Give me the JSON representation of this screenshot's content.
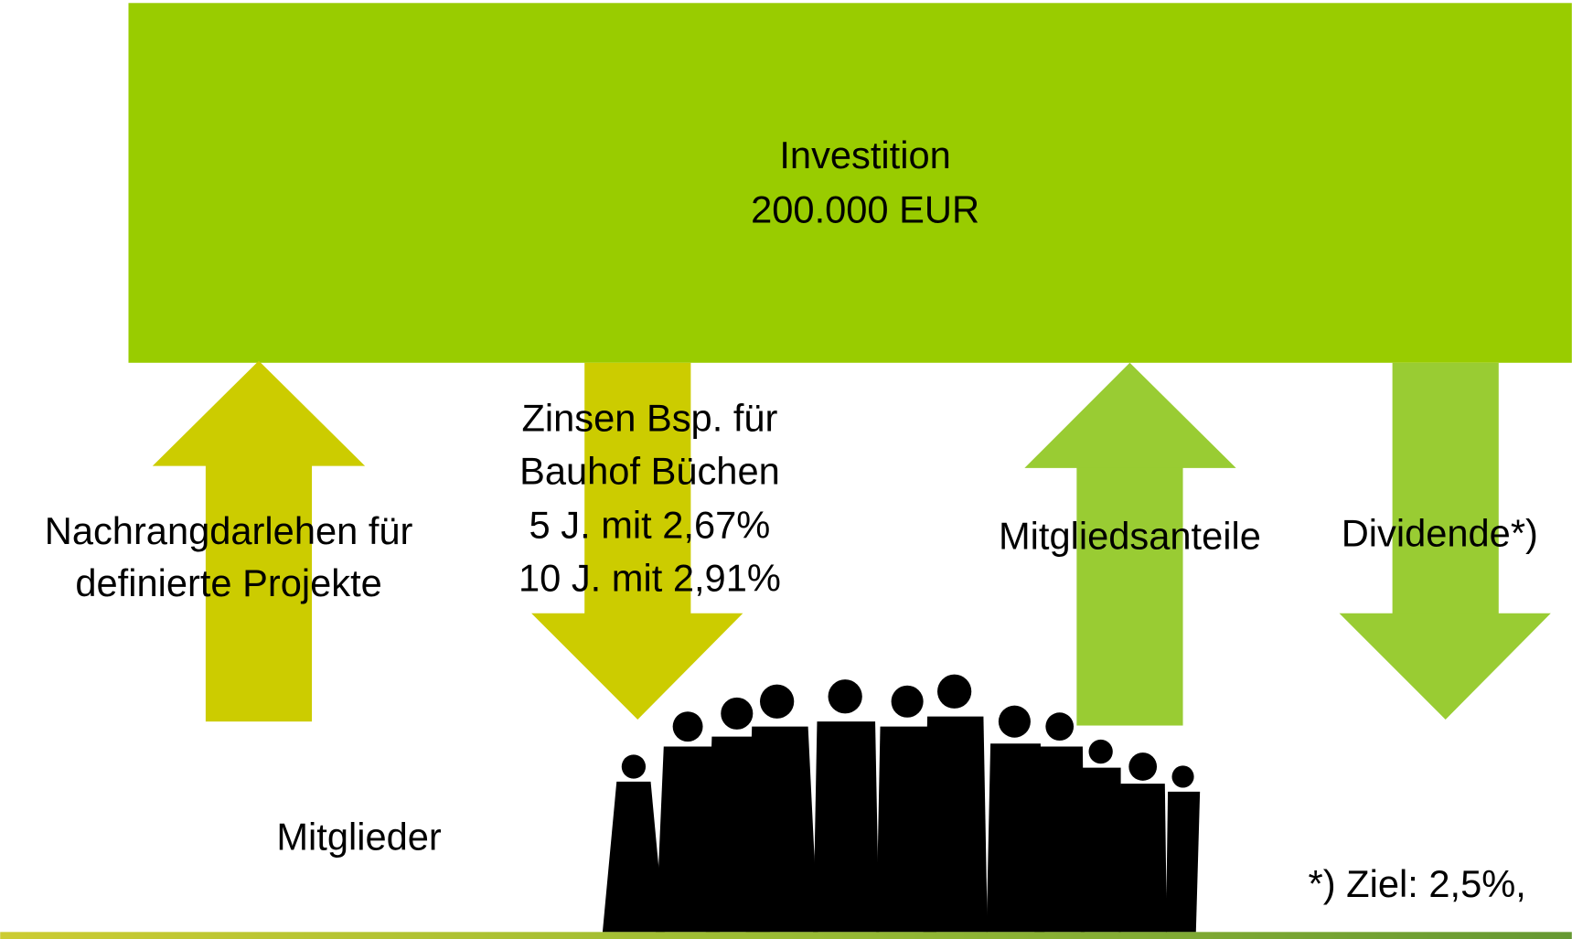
{
  "investment": {
    "title": "Investition",
    "amount": "200.000 EUR"
  },
  "flows": [
    {
      "lines": [
        "Nachrangdarlehen für",
        "definierte Projekte"
      ]
    },
    {
      "lines": [
        "Zinsen Bsp. für",
        "Bauhof Büchen",
        "5 J. mit 2,67%",
        "10 J. mit 2,91%"
      ]
    },
    {
      "lines": [
        "Mitgliedsanteile"
      ]
    },
    {
      "lines": [
        "Dividende*)"
      ]
    }
  ],
  "members": "Mitglieder",
  "footnote": "*) Ziel: 2,5%,"
}
